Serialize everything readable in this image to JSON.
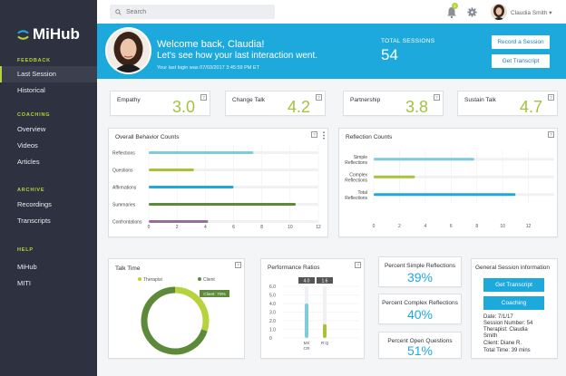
{
  "app": {
    "name": "MiHub"
  },
  "sidebar": {
    "sections": [
      {
        "title": "FEEDBACK",
        "items": [
          "Last Session",
          "Historical"
        ]
      },
      {
        "title": "COACHING",
        "items": [
          "Overview",
          "Videos",
          "Articles"
        ]
      },
      {
        "title": "ARCHIVE",
        "items": [
          "Recordings",
          "Transcripts"
        ]
      },
      {
        "title": "HELP",
        "items": [
          "MiHub",
          "MITI"
        ]
      }
    ],
    "active_item": "Last Session"
  },
  "topbar": {
    "search_placeholder": "Search",
    "notification_count": "1",
    "user_name": "Claudia Smith",
    "user_menu_caret": "▾"
  },
  "banner": {
    "welcome": "Welcome back, Claudia!",
    "subtitle": "Let's see how your last interaction went.",
    "last_login": "Your last login was 07/03/2017 3:45:59 PM ET",
    "total_sessions_label": "TOTAL SESSIONS",
    "total_sessions_value": "54",
    "record_button": "Record a Session",
    "transcript_button": "Get Transcript"
  },
  "metrics": [
    {
      "label": "Empathy",
      "value": "3.0"
    },
    {
      "label": "Change Talk",
      "value": "4.2"
    },
    {
      "label": "Partnership",
      "value": "3.8"
    },
    {
      "label": "Sustain Talk",
      "value": "4.7"
    }
  ],
  "overall_behavior": {
    "title": "Overall Behavior Counts",
    "chart_data": {
      "type": "bar",
      "orientation": "horizontal",
      "categories": [
        "Reflections",
        "Questions",
        "Affirmations",
        "Summaries",
        "Confrontations"
      ],
      "values": [
        7.4,
        3.2,
        6,
        10.4,
        4.2
      ],
      "colors": [
        "#7ecbdc",
        "#a8c23c",
        "#1ea9dc",
        "#5c8a3a",
        "#9a6b9e"
      ],
      "xlim": [
        0,
        12
      ],
      "xticks": [
        "0",
        "2",
        "4",
        "6",
        "8",
        "10",
        "12"
      ],
      "grid": true
    }
  },
  "reflection_counts": {
    "title": "Reflection Counts",
    "chart_data": {
      "type": "bar",
      "orientation": "horizontal",
      "categories": [
        "Simple Reflections",
        "Complex Reflections",
        "Total Reflections"
      ],
      "category_lines": [
        [
          "Simple",
          "Reflections"
        ],
        [
          "Complex",
          "Reflections"
        ],
        [
          "Total",
          "Reflections"
        ]
      ],
      "values": [
        7.8,
        3.2,
        11
      ],
      "colors": [
        "#7ecbdc",
        "#a8c23c",
        "#1ea9dc"
      ],
      "xlim": [
        0,
        14
      ],
      "xticks": [
        "0",
        "2",
        "4",
        "6",
        "8",
        "10",
        "12"
      ],
      "grid": true
    }
  },
  "talk_time": {
    "title": "Talk Time",
    "chart_data": {
      "type": "pie",
      "variant": "donut",
      "series": [
        {
          "name": "Therapist",
          "value": 30,
          "color": "#b6d33c"
        },
        {
          "name": "Client",
          "value": 70,
          "color": "#5c8a3a"
        }
      ],
      "tooltip": "Client: 70%"
    }
  },
  "performance_ratios": {
    "title": "Performance Ratios",
    "chart_data": {
      "type": "bar",
      "categories": [
        "MI/C R",
        "R:Q"
      ],
      "category_lines": [
        [
          "MI/",
          "CR"
        ],
        [
          "R:Q"
        ]
      ],
      "values": [
        4.0,
        1.6
      ],
      "value_labels": [
        "4.0",
        "1.6"
      ],
      "colors": [
        "#7ecbdc",
        "#a8c23c"
      ],
      "ylim": [
        0,
        6.0
      ],
      "yticks": [
        "6.0",
        "5.0",
        "4.0",
        "3.0",
        "2.0",
        "1.0",
        "0"
      ],
      "grid": true
    }
  },
  "percentages": [
    {
      "label": "Percent Simple Reflections",
      "value": "39%"
    },
    {
      "label": "Percent Complex Reflections",
      "value": "40%"
    },
    {
      "label": "Percent Open Questions",
      "value": "51%"
    }
  ],
  "general_info": {
    "title": "General Session information",
    "transcript_button": "Get Transcript",
    "coaching_button": "Coaching",
    "lines": [
      "Date: 7/1/17",
      "Session Number: 54",
      "Therapist: Claudia",
      "Smith",
      "Client: Diane R.",
      "Total Time: 39 mins"
    ]
  },
  "help_icon": "?"
}
